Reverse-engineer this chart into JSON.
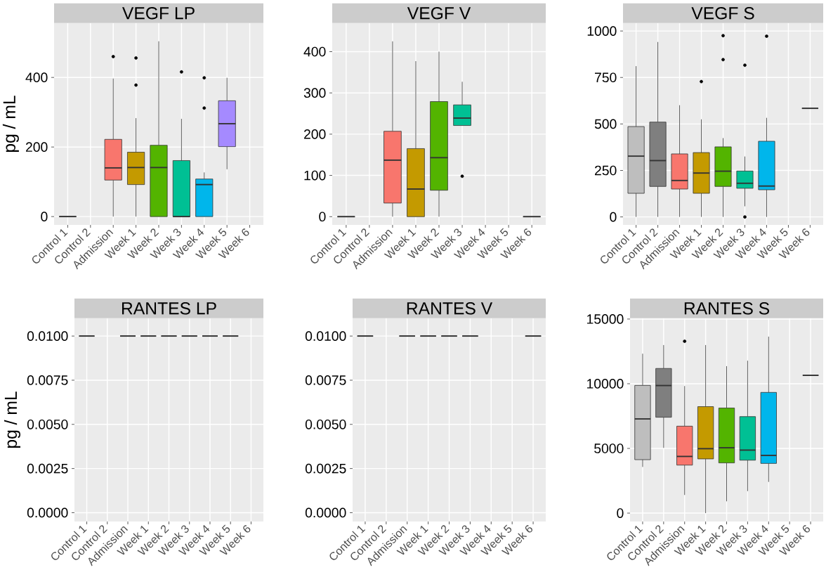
{
  "chart_data": [
    {
      "type": "box",
      "title": "VEGF LP",
      "ylabel": "pg / mL",
      "categories": [
        "Control 1",
        "Control 2",
        "Admission",
        "Week 1",
        "Week 2",
        "Week 3",
        "Week 4",
        "Week 5",
        "Week 6"
      ],
      "boxes": [
        {
          "low": 0,
          "q1": 0,
          "median": 0,
          "q3": 0,
          "high": 0
        },
        null,
        {
          "low": 0,
          "q1": 105,
          "median": 140,
          "q3": 222,
          "high": 397,
          "outliers": [
            460
          ]
        },
        {
          "low": 0,
          "q1": 92,
          "median": 141,
          "q3": 185,
          "high": 283,
          "outliers": [
            456,
            378
          ]
        },
        {
          "low": 0,
          "q1": 0,
          "median": 141,
          "q3": 205,
          "high": 504
        },
        {
          "low": 0,
          "q1": 0,
          "median": 0,
          "q3": 161,
          "high": 281,
          "outliers": [
            416
          ]
        },
        {
          "low": 0,
          "q1": 0,
          "median": 92,
          "q3": 108,
          "high": 127,
          "outliers": [
            399,
            312
          ]
        },
        {
          "low": 136,
          "q1": 201,
          "median": 267,
          "q3": 333,
          "high": 399
        },
        null
      ],
      "colors": [
        null,
        null,
        "#F8766D",
        "#C49A00",
        "#53B400",
        "#00C094",
        "#00B6EB",
        "#A58AFF",
        null
      ],
      "ylim": [
        -24,
        556
      ],
      "yticks": [
        0,
        200,
        400
      ],
      "grid": true
    },
    {
      "type": "box",
      "title": "VEGF V",
      "categories": [
        "Control 1",
        "Control 2",
        "Admission",
        "Week 1",
        "Week 2",
        "Week 3",
        "Week 4",
        "Week 5",
        "Week 6"
      ],
      "boxes": [
        {
          "low": 0,
          "q1": 0,
          "median": 0,
          "q3": 0,
          "high": 0
        },
        null,
        {
          "low": 0,
          "q1": 33,
          "median": 137,
          "q3": 207,
          "high": 425
        },
        {
          "low": 0,
          "q1": 0,
          "median": 67,
          "q3": 165,
          "high": 377
        },
        {
          "low": 0,
          "q1": 64,
          "median": 143,
          "q3": 279,
          "high": 400
        },
        {
          "low": 221,
          "q1": 221,
          "median": 239,
          "q3": 271,
          "high": 327,
          "outliers": [
            98
          ]
        },
        null,
        null,
        {
          "low": 0,
          "q1": 0,
          "median": 0,
          "q3": 0,
          "high": 0
        }
      ],
      "colors": [
        null,
        null,
        "#F8766D",
        "#C49A00",
        "#53B400",
        "#00C094",
        null,
        null,
        null
      ],
      "ylim": [
        -20,
        469
      ],
      "yticks": [
        0,
        100,
        200,
        300,
        400
      ],
      "grid": true
    },
    {
      "type": "box",
      "title": "VEGF S",
      "categories": [
        "Control 1",
        "Control 2",
        "Admission",
        "Week 1",
        "Week 2",
        "Week 3",
        "Week 4",
        "Week 5",
        "Week 6"
      ],
      "boxes": [
        {
          "low": 0,
          "q1": 127,
          "median": 327,
          "q3": 486,
          "high": 811
        },
        {
          "low": 0,
          "q1": 164,
          "median": 303,
          "q3": 510,
          "high": 941
        },
        {
          "low": 0,
          "q1": 150,
          "median": 196,
          "q3": 339,
          "high": 601
        },
        {
          "low": 0,
          "q1": 127,
          "median": 236,
          "q3": 346,
          "high": 525,
          "outliers": [
            728
          ]
        },
        {
          "low": 0,
          "q1": 164,
          "median": 246,
          "q3": 377,
          "high": 424,
          "outliers": [
            975,
            846
          ]
        },
        {
          "low": 57,
          "q1": 154,
          "median": 181,
          "q3": 247,
          "high": 325,
          "outliers": [
            816,
            0
          ]
        },
        {
          "low": 0,
          "q1": 146,
          "median": 166,
          "q3": 407,
          "high": 533,
          "outliers": [
            972
          ]
        },
        null,
        {
          "low": 584,
          "q1": 584,
          "median": 584,
          "q3": 584,
          "high": 584
        }
      ],
      "colors": [
        "#BEBEBE",
        "#7F7F7F",
        "#F8766D",
        "#C49A00",
        "#53B400",
        "#00C094",
        "#00B6EB",
        null,
        null
      ],
      "ylim": [
        -43,
        1042
      ],
      "yticks": [
        0,
        250,
        500,
        750,
        1000
      ],
      "grid": true
    },
    {
      "type": "box",
      "title": "RANTES LP",
      "ylabel": "pg / mL",
      "categories": [
        "Control 1",
        "Control 2",
        "Admission",
        "Week 1",
        "Week 2",
        "Week 3",
        "Week 4",
        "Week 5",
        "Week 6"
      ],
      "boxes": [
        {
          "low": 0.01,
          "q1": 0.01,
          "median": 0.01,
          "q3": 0.01,
          "high": 0.01
        },
        null,
        {
          "low": 0.01,
          "q1": 0.01,
          "median": 0.01,
          "q3": 0.01,
          "high": 0.01
        },
        {
          "low": 0.01,
          "q1": 0.01,
          "median": 0.01,
          "q3": 0.01,
          "high": 0.01
        },
        {
          "low": 0.01,
          "q1": 0.01,
          "median": 0.01,
          "q3": 0.01,
          "high": 0.01
        },
        {
          "low": 0.01,
          "q1": 0.01,
          "median": 0.01,
          "q3": 0.01,
          "high": 0.01
        },
        {
          "low": 0.01,
          "q1": 0.01,
          "median": 0.01,
          "q3": 0.01,
          "high": 0.01
        },
        {
          "low": 0.01,
          "q1": 0.01,
          "median": 0.01,
          "q3": 0.01,
          "high": 0.01
        },
        null
      ],
      "ylim": [
        -0.0005,
        0.011
      ],
      "yticks": [
        {
          "value": 0,
          "label": "0.0000"
        },
        {
          "value": 0.0025,
          "label": "0.0025"
        },
        {
          "value": 0.005,
          "label": "0.0050"
        },
        {
          "value": 0.0075,
          "label": "0.0075"
        },
        {
          "value": 0.01,
          "label": "0.0100"
        }
      ],
      "grid": true
    },
    {
      "type": "box",
      "title": "RANTES V",
      "categories": [
        "Control 1",
        "Control 2",
        "Admission",
        "Week 1",
        "Week 2",
        "Week 3",
        "Week 4",
        "Week 5",
        "Week 6"
      ],
      "boxes": [
        {
          "low": 0.01,
          "q1": 0.01,
          "median": 0.01,
          "q3": 0.01,
          "high": 0.01
        },
        null,
        {
          "low": 0.01,
          "q1": 0.01,
          "median": 0.01,
          "q3": 0.01,
          "high": 0.01
        },
        {
          "low": 0.01,
          "q1": 0.01,
          "median": 0.01,
          "q3": 0.01,
          "high": 0.01
        },
        {
          "low": 0.01,
          "q1": 0.01,
          "median": 0.01,
          "q3": 0.01,
          "high": 0.01
        },
        {
          "low": 0.01,
          "q1": 0.01,
          "median": 0.01,
          "q3": 0.01,
          "high": 0.01
        },
        null,
        null,
        {
          "low": 0.01,
          "q1": 0.01,
          "median": 0.01,
          "q3": 0.01,
          "high": 0.01
        }
      ],
      "ylim": [
        -0.0005,
        0.011
      ],
      "yticks": [
        {
          "value": 0,
          "label": "0.0000"
        },
        {
          "value": 0.0025,
          "label": "0.0025"
        },
        {
          "value": 0.005,
          "label": "0.0050"
        },
        {
          "value": 0.0075,
          "label": "0.0075"
        },
        {
          "value": 0.01,
          "label": "0.0100"
        }
      ],
      "grid": true
    },
    {
      "type": "box",
      "title": "RANTES S",
      "categories": [
        "Control 1",
        "Control 2",
        "Admission",
        "Week 1",
        "Week 2",
        "Week 3",
        "Week 4",
        "Week 5",
        "Week 6"
      ],
      "boxes": [
        {
          "low": 3570,
          "q1": 4130,
          "median": 7280,
          "q3": 9870,
          "high": 12320
        },
        {
          "low": 5040,
          "q1": 7410,
          "median": 9860,
          "q3": 11180,
          "high": 12990
        },
        {
          "low": 1400,
          "q1": 3710,
          "median": 4380,
          "q3": 6720,
          "high": 9820,
          "outliers": [
            13280
          ]
        },
        {
          "low": 0,
          "q1": 4190,
          "median": 4980,
          "q3": 8230,
          "high": 12990
        },
        {
          "low": 910,
          "q1": 3880,
          "median": 5050,
          "q3": 8120,
          "high": 11360
        },
        {
          "low": 1700,
          "q1": 4090,
          "median": 4870,
          "q3": 7460,
          "high": 11780
        },
        {
          "low": 2410,
          "q1": 3840,
          "median": 4460,
          "q3": 9330,
          "high": 13640
        },
        null,
        {
          "low": 10650,
          "q1": 10650,
          "median": 10650,
          "q3": 10650,
          "high": 10650
        }
      ],
      "colors": [
        "#BEBEBE",
        "#7F7F7F",
        "#F8766D",
        "#C49A00",
        "#53B400",
        "#00C094",
        "#00B6EB",
        null,
        null
      ],
      "ylim": [
        -650,
        15050
      ],
      "yticks": [
        0,
        5000,
        10000,
        15000
      ],
      "grid": true
    }
  ]
}
